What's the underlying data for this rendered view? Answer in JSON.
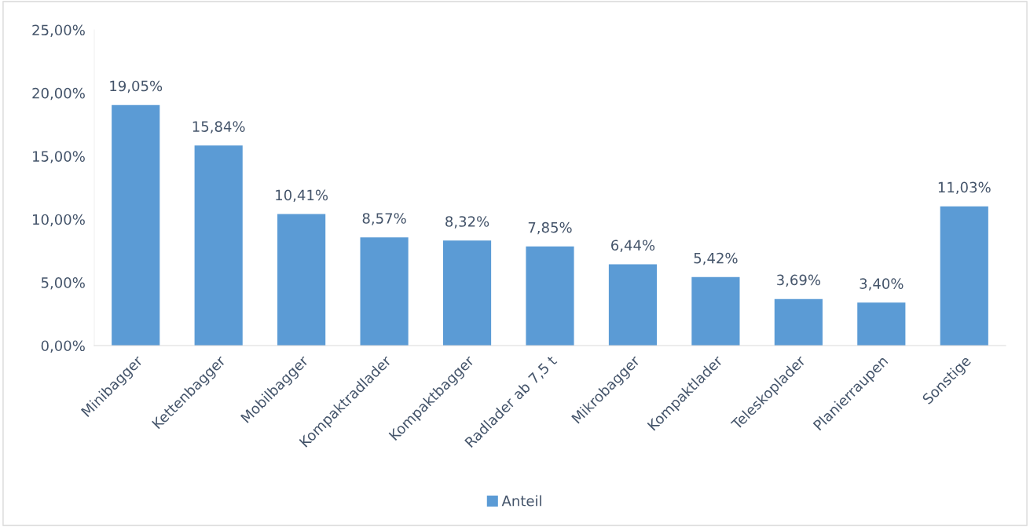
{
  "chart_data": {
    "type": "bar",
    "categories": [
      "Minibagger",
      "Kettenbagger",
      "Mobilbagger",
      "Kompaktradlader",
      "Kompaktbagger",
      "Radlader ab 7,5 t",
      "Mikrobagger",
      "Kompaktlader",
      "Teleskoplader",
      "Planierraupen",
      "Sonstige"
    ],
    "series": [
      {
        "name": "Anteil",
        "color": "#5b9bd5",
        "values": [
          19.05,
          15.84,
          10.41,
          8.57,
          8.32,
          7.85,
          6.44,
          5.42,
          3.69,
          3.4,
          11.03
        ],
        "value_labels": [
          "19,05%",
          "15,84%",
          "10,41%",
          "8,57%",
          "8,32%",
          "7,85%",
          "6,44%",
          "5,42%",
          "3,69%",
          "3,40%",
          "11,03%"
        ]
      }
    ],
    "ylim": [
      0,
      25
    ],
    "yticks": [
      {
        "value": 0,
        "label": "0,00%"
      },
      {
        "value": 5,
        "label": "5,00%"
      },
      {
        "value": 10,
        "label": "10,00%"
      },
      {
        "value": 15,
        "label": "15,00%"
      },
      {
        "value": 20,
        "label": "20,00%"
      },
      {
        "value": 25,
        "label": "25,00%"
      }
    ],
    "grid": false,
    "legend": "bottom"
  }
}
